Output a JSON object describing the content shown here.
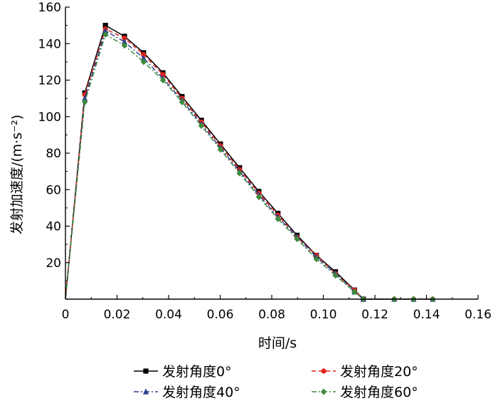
{
  "chart_data": {
    "type": "line",
    "title": "",
    "xlabel": "时间/s",
    "ylabel": "发射加速度/(m·s⁻²)",
    "xlim": [
      0,
      0.16
    ],
    "ylim": [
      0,
      160
    ],
    "x_ticks": [
      "0",
      "0.02",
      "0.04",
      "0.06",
      "0.08",
      "0.10",
      "0.12",
      "0.14",
      "0.16"
    ],
    "y_ticks": [
      "20",
      "40",
      "60",
      "80",
      "100",
      "120",
      "140",
      "160"
    ],
    "grid": false,
    "legend_position": "bottom",
    "series": [
      {
        "name": "发射角度0°",
        "color": "#000000",
        "marker": "square",
        "line_style": "solid",
        "x": [
          0,
          0.0075,
          0.0155,
          0.0229,
          0.0303,
          0.0378,
          0.0452,
          0.0527,
          0.0601,
          0.0675,
          0.075,
          0.0824,
          0.0898,
          0.0973,
          0.1047,
          0.1121,
          0.1155
        ],
        "y": [
          0,
          113,
          150,
          144,
          135,
          124,
          111,
          98,
          85,
          72,
          59,
          47,
          35,
          24,
          15,
          5,
          0
        ]
      },
      {
        "name": "发射角度20°",
        "color": "#e0241c",
        "marker": "circle",
        "line_style": "dashed",
        "x": [
          0,
          0.0075,
          0.0155,
          0.0229,
          0.0303,
          0.0378,
          0.0452,
          0.0527,
          0.0601,
          0.0675,
          0.075,
          0.0824,
          0.0898,
          0.0973,
          0.1047,
          0.1121,
          0.1155,
          0.1275,
          0.135,
          0.1424
        ],
        "y": [
          0,
          112,
          148,
          143,
          134,
          123,
          110,
          97,
          84,
          71,
          58,
          46,
          34,
          24,
          14,
          5,
          0,
          0,
          0,
          0
        ]
      },
      {
        "name": "发射角度40°",
        "color": "#2e3f8f",
        "marker": "triangle",
        "line_style": "dashdot",
        "x": [
          0,
          0.0075,
          0.0155,
          0.0229,
          0.0303,
          0.0378,
          0.0452,
          0.0527,
          0.0601,
          0.0675,
          0.075,
          0.0824,
          0.0898,
          0.0973,
          0.1047,
          0.1121,
          0.1155,
          0.1275,
          0.135,
          0.1424
        ],
        "y": [
          0,
          110,
          147,
          141,
          132,
          121,
          109,
          96,
          83,
          70,
          57,
          45,
          34,
          23,
          14,
          4,
          0,
          0,
          0,
          0
        ]
      },
      {
        "name": "发射角度60°",
        "color": "#3d8a3d",
        "marker": "diamond",
        "line_style": "dashdot",
        "x": [
          0,
          0.0075,
          0.0155,
          0.0229,
          0.0303,
          0.0378,
          0.0452,
          0.0527,
          0.0601,
          0.0675,
          0.075,
          0.0824,
          0.0898,
          0.0973,
          0.1047,
          0.1121,
          0.1155,
          0.1275,
          0.135,
          0.1424
        ],
        "y": [
          0,
          108,
          145,
          139,
          130,
          120,
          108,
          95,
          82,
          69,
          56,
          44,
          33,
          22,
          13,
          4,
          0,
          0,
          0,
          0
        ]
      }
    ]
  }
}
